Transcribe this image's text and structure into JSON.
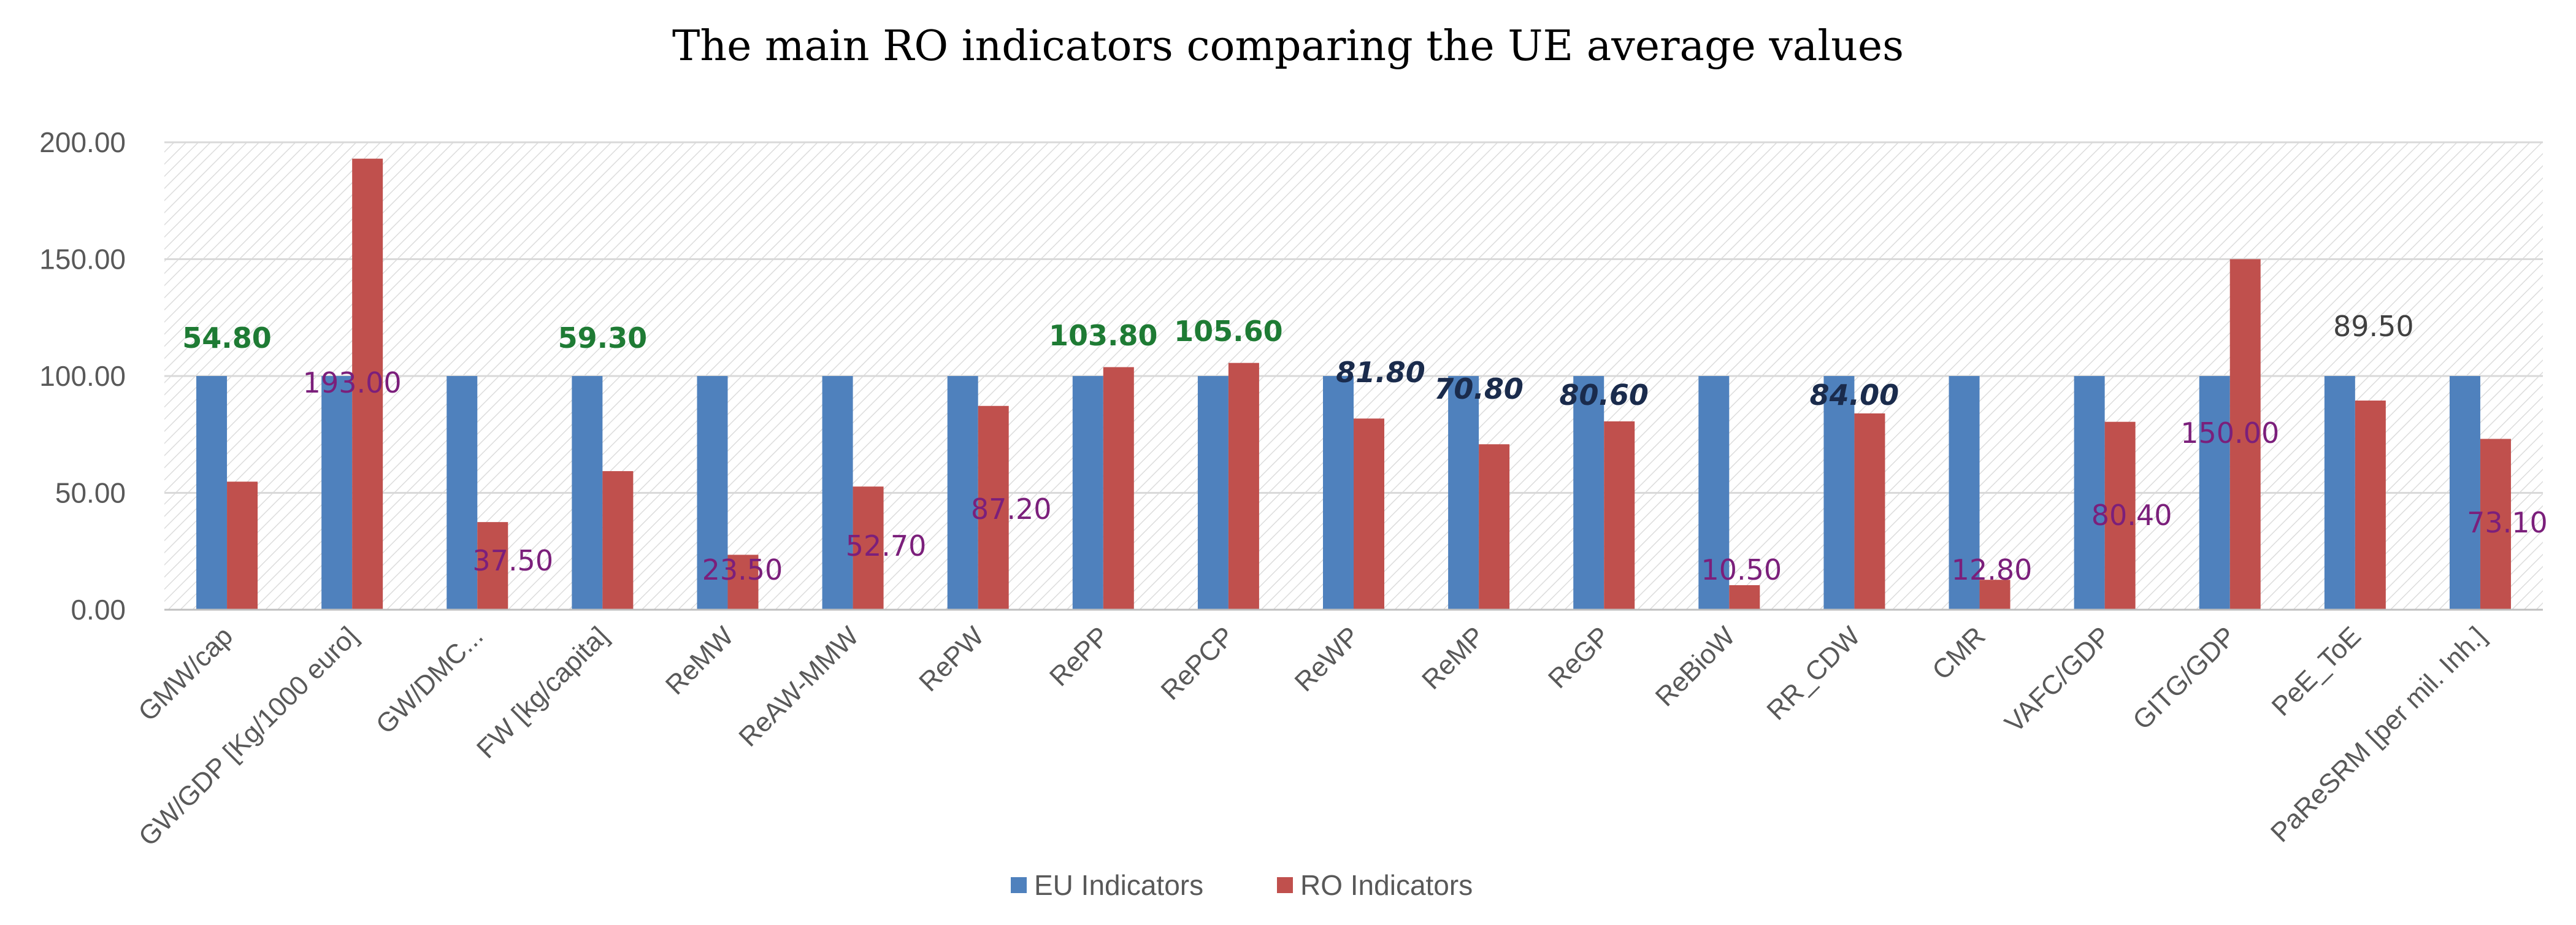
{
  "chart_data": {
    "type": "bar",
    "title": "The main RO indicators comparing the UE average values",
    "xlabel": "",
    "ylabel": "",
    "ylim": [
      0,
      200
    ],
    "yticks": [
      "0.00",
      "50.00",
      "100.00",
      "150.00",
      "200.00"
    ],
    "ytick_values": [
      0,
      50,
      100,
      150,
      200
    ],
    "categories": [
      "GMW/cap",
      "GW/GDP [Kg/1000 euro]",
      "GW/DMC...",
      "FW [kg/capita]",
      "ReMW",
      "ReAW-MMW",
      "RePW",
      "RePP",
      "RePCP",
      "ReWP",
      "ReMP",
      "ReGP",
      "ReBioW",
      "RR_CDW",
      "CMR",
      "VAFC/GDP",
      "GITG/GDP",
      "PeE_ToE",
      "PaReSRM [per mil. Inh.]"
    ],
    "series": [
      {
        "name": "EU Indicators",
        "color": "#4f81bd",
        "values": [
          100,
          100,
          100,
          100,
          100,
          100,
          100,
          100,
          100,
          100,
          100,
          100,
          100,
          100,
          100,
          100,
          100,
          100,
          100
        ]
      },
      {
        "name": "RO Indicators",
        "color": "#c0504d",
        "values": [
          54.8,
          193.0,
          37.5,
          59.3,
          23.5,
          52.7,
          87.2,
          103.8,
          105.6,
          81.8,
          70.8,
          80.6,
          10.5,
          84.0,
          12.8,
          80.4,
          150.0,
          89.5,
          73.1
        ]
      }
    ],
    "data_labels": [
      "54.80",
      "193.00",
      "37.50",
      "59.30",
      "23.50",
      "52.70",
      "87.20",
      "103.80",
      "105.60",
      "81.80",
      "70.80",
      "80.60",
      "10.50",
      "84.00",
      "12.80",
      "80.40",
      "150.00",
      "89.50",
      "73.10"
    ],
    "data_label_styles": [
      "green",
      "purple",
      "purple",
      "green",
      "purple",
      "purple",
      "purple",
      "green",
      "green",
      "navy",
      "navy",
      "navy",
      "purple",
      "navy",
      "purple",
      "purple",
      "purple",
      "gray",
      "purple"
    ],
    "legend": [
      "EU Indicators",
      "RO Indicators"
    ],
    "legend_position": "bottom",
    "grid": true
  },
  "colors": {
    "eu": "#4f81bd",
    "ro": "#c0504d",
    "grid": "#d9d9d9",
    "axis": "#bfbfbf"
  }
}
